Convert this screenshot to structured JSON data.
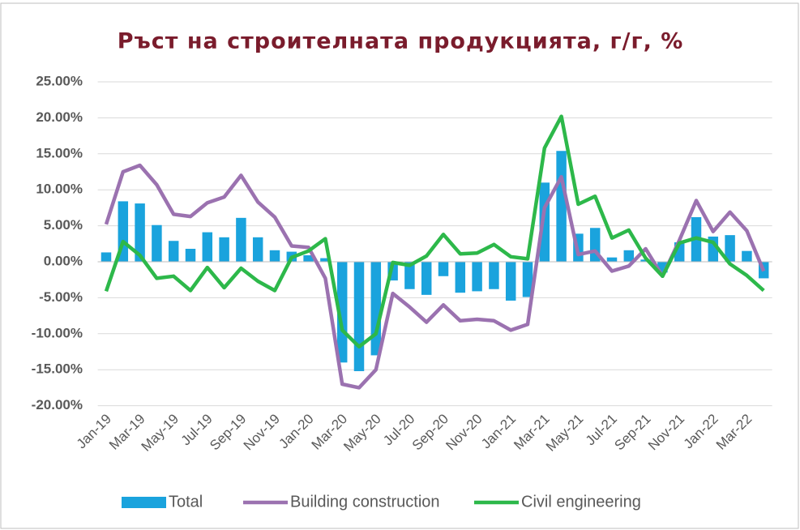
{
  "chart_data": {
    "type": "bar_line",
    "title": "Ръст на строителната продукцията, г/г, %",
    "categories": [
      "Jan-19",
      null,
      "Mar-19",
      null,
      "May-19",
      null,
      "Jul-19",
      null,
      "Sep-19",
      null,
      "Nov-19",
      null,
      "Jan-20",
      null,
      "Mar-20",
      null,
      "May-20",
      null,
      "Jul-20",
      null,
      "Sep-20",
      null,
      "Nov-20",
      null,
      "Jan-21",
      null,
      "Mar-21",
      null,
      "May-21",
      null,
      "Jul-21",
      null,
      "Sep-21",
      null,
      "Nov-21",
      null,
      "Jan-22",
      null,
      "Mar-22",
      null
    ],
    "series": [
      {
        "name": "Total",
        "kind": "bar",
        "color": "#1aa3dd",
        "values": [
          1.3,
          8.4,
          8.1,
          5.1,
          2.9,
          1.8,
          4.1,
          3.4,
          6.1,
          3.4,
          1.6,
          1.4,
          0.9,
          0.5,
          -14,
          -15.2,
          -13,
          -2.6,
          -3.8,
          -4.6,
          -2,
          -4.3,
          -4.1,
          -3.8,
          -5.4,
          -4.9,
          11,
          15.4,
          3.9,
          4.7,
          0.6,
          1.6,
          0.3,
          -1.5,
          2.7,
          6.2,
          3.5,
          3.7,
          1.5,
          -2.3
        ]
      },
      {
        "name": "Building construction",
        "kind": "line",
        "color": "#9b72b0",
        "values": [
          5.2,
          12.5,
          13.4,
          10.7,
          6.6,
          6.3,
          8.2,
          9.0,
          12.0,
          8.3,
          6.2,
          2.2,
          2.0,
          -2.3,
          -17,
          -17.5,
          -15,
          -4.4,
          -6.3,
          -8.4,
          -6.0,
          -8.2,
          -8.0,
          -8.2,
          -9.5,
          -8.7,
          7.5,
          11.8,
          1.0,
          1.5,
          -1.3,
          -0.6,
          1.8,
          -2.0,
          3.0,
          8.5,
          4.2,
          6.9,
          4.3,
          -1.3
        ]
      },
      {
        "name": "Civil engineering",
        "kind": "line",
        "color": "#2db84a",
        "values": [
          -4.1,
          2.8,
          0.9,
          -2.3,
          -2.0,
          -4.0,
          -0.8,
          -3.6,
          -0.9,
          -2.7,
          -4.0,
          0.6,
          1.5,
          3.2,
          -9.5,
          -11.8,
          -10.0,
          -0.1,
          -0.5,
          0.8,
          3.8,
          1.1,
          1.2,
          2.4,
          0.7,
          0.4,
          15.8,
          20.2,
          8.0,
          9.1,
          3.3,
          4.4,
          0.5,
          -2.0,
          2.6,
          3.3,
          2.7,
          -0.3,
          -1.9,
          -4.0
        ]
      }
    ],
    "ylim": [
      -20,
      25
    ],
    "yticks": [
      {
        "value": -20,
        "label": "-20.00%"
      },
      {
        "value": -15,
        "label": "-15.00%"
      },
      {
        "value": -10,
        "label": "-10.00%"
      },
      {
        "value": -5,
        "label": "-5.00%"
      },
      {
        "value": 0,
        "label": "0.00%"
      },
      {
        "value": 5,
        "label": "5.00%"
      },
      {
        "value": 10,
        "label": "10.00%"
      },
      {
        "value": 15,
        "label": "15.00%"
      },
      {
        "value": 20,
        "label": "20.00%"
      },
      {
        "value": 25,
        "label": "25.00%"
      }
    ],
    "grid": true,
    "legend": "bottom"
  }
}
